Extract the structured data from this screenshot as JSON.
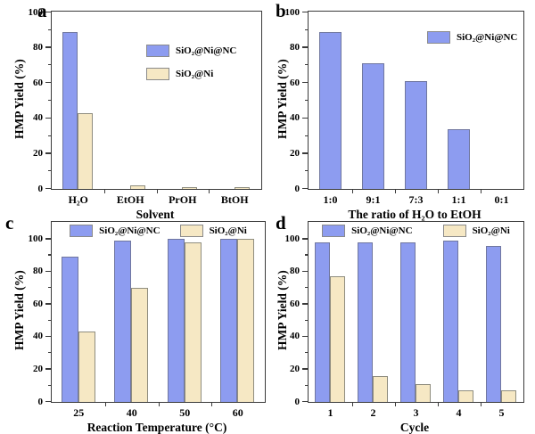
{
  "figure": {
    "background": "#ffffff"
  },
  "colors": {
    "frame": "#3a3a3a",
    "text": "#000000",
    "nc_fill": "#8d9cf0",
    "nc_border": "#70779f",
    "ni_fill": "#f6e8c4",
    "ni_border": "#8f8d7f"
  },
  "chart_data": [
    {
      "panel": "a",
      "type": "bar",
      "title": "",
      "xlabel": "Solvent",
      "ylabel": "HMP Yield (%)",
      "ylim": [
        0,
        100
      ],
      "yticks": [
        0,
        20,
        40,
        60,
        80,
        100
      ],
      "minor_yticks": [
        10,
        30,
        50,
        70,
        90
      ],
      "grid": false,
      "categories": [
        "H₂O",
        "EtOH",
        "PrOH",
        "BtOH"
      ],
      "series": [
        {
          "name": "SiO₂@Ni@NC",
          "fill": "#8d9cf0",
          "border": "#70779f",
          "values": [
            89,
            0,
            0,
            0
          ]
        },
        {
          "name": "SiO₂@Ni",
          "fill": "#f6e8c4",
          "border": "#8f8d7f",
          "values": [
            43,
            2,
            1,
            1
          ]
        }
      ],
      "legend": {
        "position": "inside-middle-right",
        "orientation": "vertical"
      }
    },
    {
      "panel": "b",
      "type": "bar",
      "title": "",
      "xlabel": "The ratio of H₂O to EtOH",
      "ylabel": "HMP Yield (%)",
      "ylim": [
        0,
        100
      ],
      "yticks": [
        0,
        20,
        40,
        60,
        80,
        100
      ],
      "minor_yticks": [
        10,
        30,
        50,
        70,
        90
      ],
      "grid": false,
      "categories": [
        "1:0",
        "9:1",
        "7:3",
        "1:1",
        "0:1"
      ],
      "series": [
        {
          "name": "SiO₂@Ni@NC",
          "fill": "#8d9cf0",
          "border": "#70779f",
          "values": [
            89,
            71,
            61,
            34,
            0
          ]
        }
      ],
      "legend": {
        "position": "inside-top-right",
        "orientation": "horizontal"
      }
    },
    {
      "panel": "c",
      "type": "bar",
      "title": "",
      "xlabel": "Reaction Temperature (°C)",
      "ylabel": "HMP Yield (%)",
      "ylim": [
        0,
        110
      ],
      "yticks": [
        0,
        20,
        40,
        60,
        80,
        100
      ],
      "minor_yticks": [
        10,
        30,
        50,
        70,
        90
      ],
      "grid": false,
      "categories": [
        "25",
        "40",
        "50",
        "60"
      ],
      "series": [
        {
          "name": "SiO₂@Ni@NC",
          "fill": "#8d9cf0",
          "border": "#70779f",
          "values": [
            89,
            99,
            100,
            100
          ]
        },
        {
          "name": "SiO₂@Ni",
          "fill": "#f6e8c4",
          "border": "#8f8d7f",
          "values": [
            43,
            70,
            98,
            100
          ]
        }
      ],
      "legend": {
        "position": "inside-top-center",
        "orientation": "horizontal"
      }
    },
    {
      "panel": "d",
      "type": "bar",
      "title": "",
      "xlabel": "Cycle",
      "ylabel": "HMP Yield (%)",
      "ylim": [
        0,
        110
      ],
      "yticks": [
        0,
        20,
        40,
        60,
        80,
        100
      ],
      "minor_yticks": [
        10,
        30,
        50,
        70,
        90
      ],
      "grid": false,
      "categories": [
        "1",
        "2",
        "3",
        "4",
        "5"
      ],
      "series": [
        {
          "name": "SiO₂@Ni@NC",
          "fill": "#8d9cf0",
          "border": "#70779f",
          "values": [
            98,
            98,
            98,
            99,
            96
          ]
        },
        {
          "name": "SiO₂@Ni",
          "fill": "#f6e8c4",
          "border": "#8f8d7f",
          "values": [
            77,
            16,
            11,
            7,
            7
          ]
        }
      ],
      "legend": {
        "position": "inside-top-center",
        "orientation": "horizontal"
      }
    }
  ]
}
